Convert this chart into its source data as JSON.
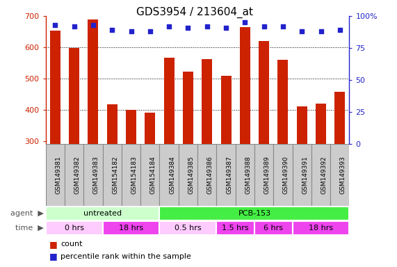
{
  "title": "GDS3954 / 213604_at",
  "samples": [
    "GSM149381",
    "GSM149382",
    "GSM149383",
    "GSM154182",
    "GSM154183",
    "GSM154184",
    "GSM149384",
    "GSM149385",
    "GSM149386",
    "GSM149387",
    "GSM149388",
    "GSM149389",
    "GSM149390",
    "GSM149391",
    "GSM149392",
    "GSM149393"
  ],
  "counts": [
    653,
    598,
    690,
    418,
    400,
    392,
    567,
    523,
    563,
    508,
    665,
    620,
    560,
    410,
    420,
    458
  ],
  "percentile_ranks": [
    93,
    92,
    93,
    89,
    88,
    88,
    92,
    91,
    92,
    91,
    95,
    92,
    92,
    88,
    88,
    89
  ],
  "bar_color": "#cc2200",
  "dot_color": "#2222cc",
  "ylim_left": [
    290,
    700
  ],
  "ylim_right": [
    0,
    100
  ],
  "yticks_left": [
    300,
    400,
    500,
    600,
    700
  ],
  "yticks_right": [
    0,
    25,
    50,
    75,
    100
  ],
  "gridlines_at": [
    400,
    500,
    600
  ],
  "agent_groups": [
    {
      "label": "untreated",
      "start": 0,
      "end": 6,
      "color": "#ccffcc"
    },
    {
      "label": "PCB-153",
      "start": 6,
      "end": 16,
      "color": "#44ee44"
    }
  ],
  "time_groups": [
    {
      "label": "0 hrs",
      "start": 0,
      "end": 3,
      "color": "#ffccff"
    },
    {
      "label": "18 hrs",
      "start": 3,
      "end": 6,
      "color": "#ee44ee"
    },
    {
      "label": "0.5 hrs",
      "start": 6,
      "end": 9,
      "color": "#ffccff"
    },
    {
      "label": "1.5 hrs",
      "start": 9,
      "end": 11,
      "color": "#ee44ee"
    },
    {
      "label": "6 hrs",
      "start": 11,
      "end": 13,
      "color": "#ee44ee"
    },
    {
      "label": "18 hrs",
      "start": 13,
      "end": 16,
      "color": "#ee44ee"
    }
  ],
  "xtick_bg": "#cccccc",
  "xtick_border": "#888888",
  "left_tick_color": "#cc2200",
  "right_tick_color": "#2222cc",
  "title_fontsize": 11,
  "bar_width": 0.55
}
